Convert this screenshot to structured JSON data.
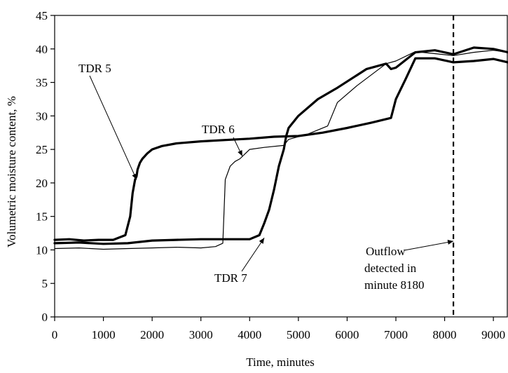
{
  "chart_data": {
    "type": "line",
    "title": "",
    "xlabel": "Time, minutes",
    "ylabel": "Volumetric moisture content, %",
    "xlim": [
      0,
      9300
    ],
    "ylim": [
      0,
      45
    ],
    "x_ticks": [
      0,
      1000,
      2000,
      3000,
      4000,
      5000,
      6000,
      7000,
      8000,
      9000
    ],
    "y_ticks": [
      0,
      5,
      10,
      15,
      20,
      25,
      30,
      35,
      40,
      45
    ],
    "x_tick_labels": [
      "0",
      "1000",
      "2000",
      "3000",
      "4000",
      "5000",
      "6000",
      "7000",
      "8000",
      "9000"
    ],
    "y_tick_labels": [
      "0",
      "5",
      "10",
      "15",
      "20",
      "25",
      "30",
      "35",
      "40",
      "45"
    ],
    "grid": false,
    "legend": "none",
    "series": [
      {
        "name": "TDR 5",
        "color": "#000000",
        "weight": "thick",
        "x": [
          0,
          300,
          600,
          900,
          1200,
          1450,
          1550,
          1600,
          1650,
          1680,
          1700,
          1750,
          1800,
          1900,
          2000,
          2200,
          2500,
          3000,
          3500,
          4000,
          4500,
          5000,
          5500,
          6000,
          6500,
          6900,
          7000,
          7200,
          7400,
          7800,
          8180,
          8600,
          9000,
          9300
        ],
        "y": [
          11.5,
          11.6,
          11.4,
          11.5,
          11.5,
          12.2,
          15.0,
          18.5,
          20.5,
          21.0,
          22.0,
          23.0,
          23.6,
          24.4,
          25.0,
          25.5,
          25.9,
          26.2,
          26.4,
          26.6,
          26.9,
          27.0,
          27.5,
          28.2,
          29.0,
          29.7,
          32.5,
          35.5,
          38.6,
          38.6,
          38.0,
          38.2,
          38.5,
          38.0
        ]
      },
      {
        "name": "TDR 6",
        "color": "#000000",
        "weight": "thin",
        "x": [
          0,
          500,
          1000,
          1500,
          2000,
          2500,
          3000,
          3300,
          3450,
          3500,
          3600,
          3700,
          3800,
          3900,
          4000,
          4300,
          4700,
          4800,
          5200,
          5600,
          5800,
          6200,
          6800,
          7000,
          7400,
          7800,
          8180,
          8600,
          9000,
          9300
        ],
        "y": [
          10.2,
          10.3,
          10.1,
          10.2,
          10.3,
          10.4,
          10.3,
          10.5,
          11.0,
          20.5,
          22.5,
          23.2,
          23.6,
          24.3,
          25.0,
          25.3,
          25.6,
          26.5,
          27.3,
          28.5,
          32.0,
          34.5,
          37.8,
          38.2,
          39.6,
          39.3,
          39.0,
          39.5,
          39.8,
          39.5
        ]
      },
      {
        "name": "TDR 7",
        "color": "#000000",
        "weight": "thick",
        "x": [
          0,
          500,
          1000,
          1500,
          2000,
          2500,
          3000,
          3500,
          4000,
          4200,
          4300,
          4400,
          4500,
          4600,
          4700,
          4750,
          4800,
          5000,
          5400,
          5800,
          6400,
          6800,
          6900,
          7000,
          7400,
          7800,
          8180,
          8600,
          9000,
          9300
        ],
        "y": [
          11.0,
          11.1,
          10.9,
          11.0,
          11.4,
          11.5,
          11.6,
          11.6,
          11.6,
          12.2,
          14.0,
          16.0,
          19.0,
          22.5,
          25.0,
          27.0,
          28.2,
          30.0,
          32.5,
          34.2,
          37.0,
          37.8,
          37.0,
          37.2,
          39.5,
          39.8,
          39.2,
          40.2,
          40.0,
          39.5
        ]
      }
    ],
    "annotations": [
      {
        "text": "TDR 5",
        "target_x": 1680,
        "target_y": 20.5
      },
      {
        "text": "TDR 6",
        "target_x": 3850,
        "target_y": 24.0
      },
      {
        "text": "TDR 7",
        "target_x": 4300,
        "target_y": 11.8
      },
      {
        "text_lines": [
          "Outflow",
          "detected in",
          "minute 8180"
        ],
        "target_x": 8180,
        "target_y": 11.3
      }
    ],
    "reference_lines": [
      {
        "orientation": "vertical",
        "x": 8180,
        "style": "dashed",
        "color": "#000000"
      }
    ]
  }
}
